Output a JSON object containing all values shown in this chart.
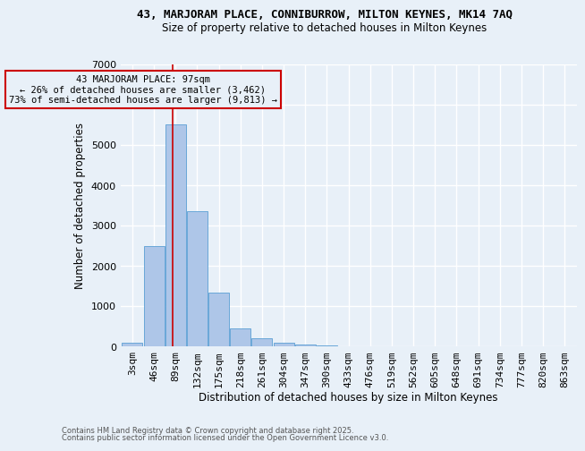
{
  "title1": "43, MARJORAM PLACE, CONNIBURROW, MILTON KEYNES, MK14 7AQ",
  "title2": "Size of property relative to detached houses in Milton Keynes",
  "xlabel": "Distribution of detached houses by size in Milton Keynes",
  "ylabel": "Number of detached properties",
  "bin_labels": [
    "3sqm",
    "46sqm",
    "89sqm",
    "132sqm",
    "175sqm",
    "218sqm",
    "261sqm",
    "304sqm",
    "347sqm",
    "390sqm",
    "433sqm",
    "476sqm",
    "519sqm",
    "562sqm",
    "605sqm",
    "648sqm",
    "691sqm",
    "734sqm",
    "777sqm",
    "820sqm",
    "863sqm"
  ],
  "bar_values": [
    100,
    2500,
    5500,
    3350,
    1330,
    450,
    210,
    100,
    50,
    30,
    0,
    0,
    0,
    0,
    0,
    0,
    0,
    0,
    0,
    0,
    0
  ],
  "bar_color": "#aec6e8",
  "bar_edgecolor": "#5a9fd4",
  "bg_color": "#e8f0f8",
  "grid_color": "#ffffff",
  "vline_x": 1.85,
  "vline_color": "#cc0000",
  "annotation_line1": "43 MARJORAM PLACE: 97sqm",
  "annotation_line2": "← 26% of detached houses are smaller (3,462)",
  "annotation_line3": "73% of semi-detached houses are larger (9,813) →",
  "annotation_box_color": "#cc0000",
  "annotation_fontsize": 7.5,
  "ylim": [
    0,
    7000
  ],
  "yticks": [
    0,
    1000,
    2000,
    3000,
    4000,
    5000,
    6000,
    7000
  ],
  "footer1": "Contains HM Land Registry data © Crown copyright and database right 2025.",
  "footer2": "Contains public sector information licensed under the Open Government Licence v3.0."
}
